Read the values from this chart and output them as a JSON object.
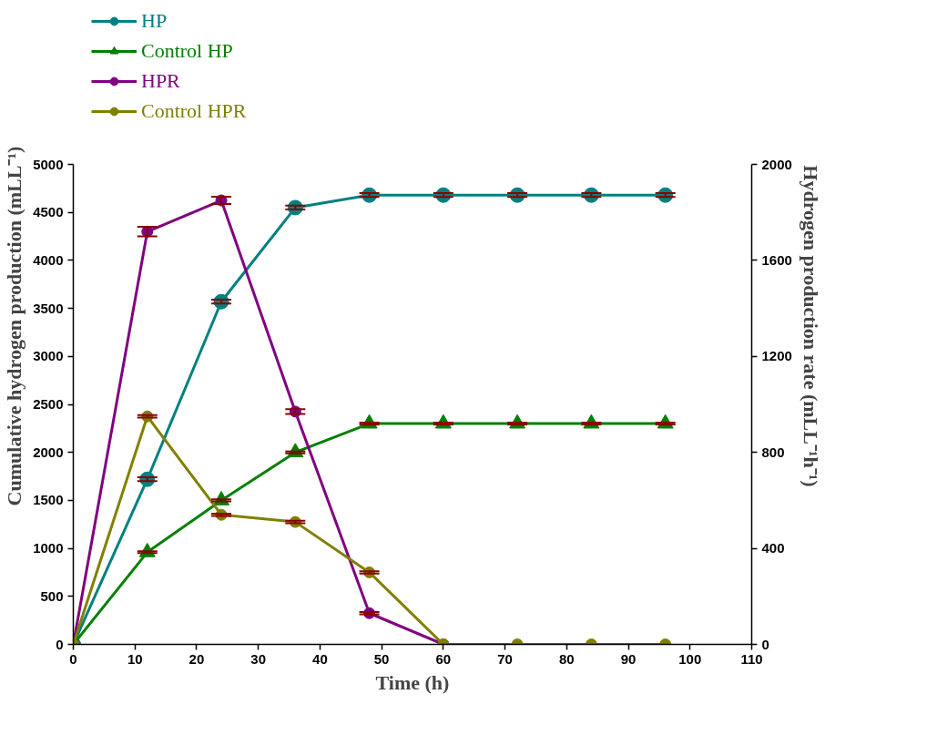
{
  "chart_data": {
    "type": "line",
    "xlabel": "Time (h)",
    "ylabel": "Cumulative hydrogen production (mLL⁻¹)",
    "y2label": "Hydrogen production rate (mLL⁻¹h⁻¹)",
    "x": [
      0,
      12,
      24,
      36,
      48,
      60,
      72,
      84,
      96
    ],
    "series": [
      {
        "name": "HP",
        "color": "#008080",
        "marker": "circle",
        "values": [
          0,
          1720,
          3570,
          4550,
          4680,
          4680,
          4680,
          4680,
          4680
        ],
        "errors": [
          null,
          20,
          20,
          20,
          20,
          20,
          20,
          20,
          20
        ]
      },
      {
        "name": "Control HP",
        "color": "#008000",
        "marker": "triangle",
        "values": [
          0,
          960,
          1500,
          2000,
          2300,
          2300,
          2300,
          2300,
          2300
        ],
        "errors": [
          null,
          10,
          10,
          10,
          10,
          10,
          10,
          10,
          10
        ]
      },
      {
        "name": "HPR",
        "color": "#800080",
        "marker": "circle",
        "axis": "y2",
        "x": [
          0,
          12,
          24,
          36,
          48,
          60
        ],
        "values": [
          0,
          1720,
          1850,
          970,
          130,
          0
        ],
        "errors": [
          null,
          20,
          15,
          10,
          5,
          null
        ]
      },
      {
        "name": "Control HPR",
        "color": "#808000",
        "marker": "circle",
        "axis": "y2",
        "values": [
          0,
          950,
          540,
          510,
          300,
          0,
          0,
          0,
          0
        ],
        "errors": [
          null,
          5,
          5,
          5,
          5,
          null,
          null,
          null,
          null
        ]
      }
    ],
    "xlim": [
      0,
      110
    ],
    "xticks": [
      0,
      10,
      20,
      30,
      40,
      50,
      60,
      70,
      80,
      90,
      100,
      110
    ],
    "ylim": [
      0,
      5000
    ],
    "yticks": [
      0,
      500,
      1000,
      1500,
      2000,
      2500,
      3000,
      3500,
      4000,
      4500,
      5000
    ],
    "y2lim": [
      0,
      2000
    ],
    "y2ticks": [
      0,
      400,
      800,
      1200,
      1600,
      2000
    ],
    "grid": false,
    "legend": "top left",
    "line_style": "solid"
  }
}
